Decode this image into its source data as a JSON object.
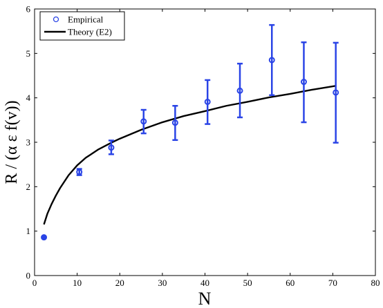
{
  "chart_data": {
    "type": "scatter",
    "xlabel": "N",
    "ylabel": "R / (α ε f(v))",
    "xlim": [
      0,
      80
    ],
    "ylim": [
      0,
      6
    ],
    "x_ticks": [
      "0",
      "10",
      "20",
      "30",
      "40",
      "50",
      "60",
      "70",
      "80"
    ],
    "y_ticks": [
      "0",
      "1",
      "2",
      "3",
      "4",
      "5",
      "6"
    ],
    "legend_position": "top-left",
    "series": [
      {
        "name": "Empirical",
        "style": "errorbar-circle",
        "color": "#2a44e6",
        "points": [
          {
            "x": 2.2,
            "y": 0.86,
            "lo": 0.86,
            "hi": 0.86,
            "filled": true
          },
          {
            "x": 10.5,
            "y": 2.33,
            "lo": 2.26,
            "hi": 2.4
          },
          {
            "x": 18,
            "y": 2.88,
            "lo": 2.73,
            "hi": 3.04
          },
          {
            "x": 25.6,
            "y": 3.47,
            "lo": 3.2,
            "hi": 3.73
          },
          {
            "x": 33,
            "y": 3.44,
            "lo": 3.05,
            "hi": 3.82
          },
          {
            "x": 40.6,
            "y": 3.91,
            "lo": 3.41,
            "hi": 4.4
          },
          {
            "x": 48.2,
            "y": 4.16,
            "lo": 3.56,
            "hi": 4.77
          },
          {
            "x": 55.7,
            "y": 4.85,
            "lo": 4.06,
            "hi": 5.64
          },
          {
            "x": 63.2,
            "y": 4.36,
            "lo": 3.45,
            "hi": 5.25
          },
          {
            "x": 70.7,
            "y": 4.12,
            "lo": 2.99,
            "hi": 5.24
          }
        ]
      },
      {
        "name": "Theory (E2)",
        "style": "line",
        "color": "#000000",
        "x": [
          2.2,
          3,
          4,
          5,
          6,
          8,
          10,
          12,
          15,
          18,
          20,
          25,
          30,
          35,
          40,
          45,
          50,
          55,
          60,
          65,
          70.7
        ],
        "y": [
          1.15,
          1.39,
          1.61,
          1.8,
          1.97,
          2.26,
          2.48,
          2.65,
          2.84,
          2.99,
          3.08,
          3.28,
          3.45,
          3.59,
          3.7,
          3.82,
          3.91,
          4.01,
          4.09,
          4.18,
          4.27
        ]
      }
    ]
  }
}
